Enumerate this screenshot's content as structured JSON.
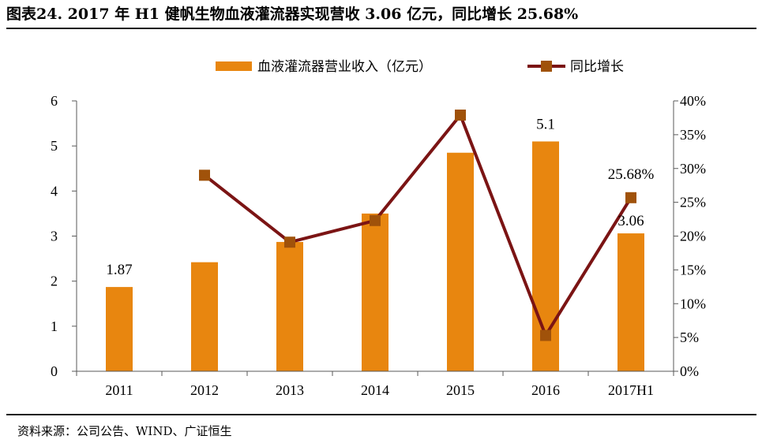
{
  "title": "图表24.  2017 年 H1 健帆生物血液灌流器实现营收 3.06 亿元，同比增长 25.68%",
  "source": "资料来源：公司公告、WIND、广证恒生",
  "chart_data": {
    "type": "bar+line",
    "categories": [
      "2011",
      "2012",
      "2013",
      "2014",
      "2015",
      "2016",
      "2017H1"
    ],
    "series": [
      {
        "name": "血液灌流器营业收入（亿元）",
        "type": "bar",
        "axis": "left",
        "color": "#E8860F",
        "values": [
          1.87,
          2.42,
          2.87,
          3.5,
          4.85,
          5.1,
          3.06
        ],
        "labels": [
          "1.87",
          "",
          "",
          "",
          "",
          "5.1",
          "3.06"
        ]
      },
      {
        "name": "同比增长",
        "type": "line",
        "axis": "right",
        "color": "#7B1414",
        "marker_color": "#A0520A",
        "values": [
          null,
          29.0,
          19.1,
          22.3,
          37.9,
          5.3,
          25.68
        ],
        "labels": [
          "",
          "",
          "",
          "",
          "",
          "",
          "25.68%"
        ]
      }
    ],
    "y_left": {
      "min": 0,
      "max": 6,
      "ticks": [
        "0",
        "1",
        "2",
        "3",
        "4",
        "5",
        "6"
      ]
    },
    "y_right": {
      "min": 0,
      "max": 40,
      "ticks": [
        "0%",
        "5%",
        "10%",
        "15%",
        "20%",
        "25%",
        "30%",
        "35%",
        "40%"
      ]
    },
    "legend_position": "top-center",
    "grid": false
  }
}
